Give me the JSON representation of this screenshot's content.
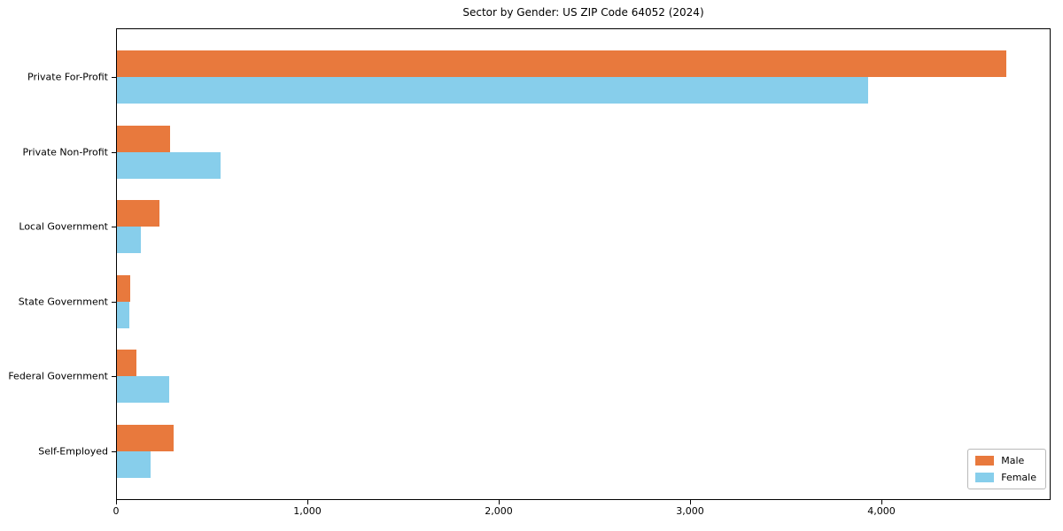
{
  "chart_data": {
    "type": "bar",
    "orientation": "horizontal",
    "title": "Sector by Gender: US ZIP Code 64052 (2024)",
    "categories": [
      "Private For-Profit",
      "Private Non-Profit",
      "Local Government",
      "State Government",
      "Federal Government",
      "Self-Employed"
    ],
    "series": [
      {
        "name": "Male",
        "color": "#e8793d",
        "values": [
          4650,
          280,
          220,
          70,
          100,
          295
        ]
      },
      {
        "name": "Female",
        "color": "#87ceeb",
        "values": [
          3925,
          540,
          125,
          65,
          275,
          175
        ]
      }
    ],
    "xlabel": "",
    "ylabel": "",
    "xlim": [
      0,
      4885
    ],
    "xticks": [
      0,
      1000,
      2000,
      3000,
      4000
    ],
    "xtick_labels": [
      "0",
      "1,000",
      "2,000",
      "3,000",
      "4,000"
    ],
    "grid": false,
    "legend_position": "lower right",
    "legend_labels": [
      "Male",
      "Female"
    ]
  }
}
